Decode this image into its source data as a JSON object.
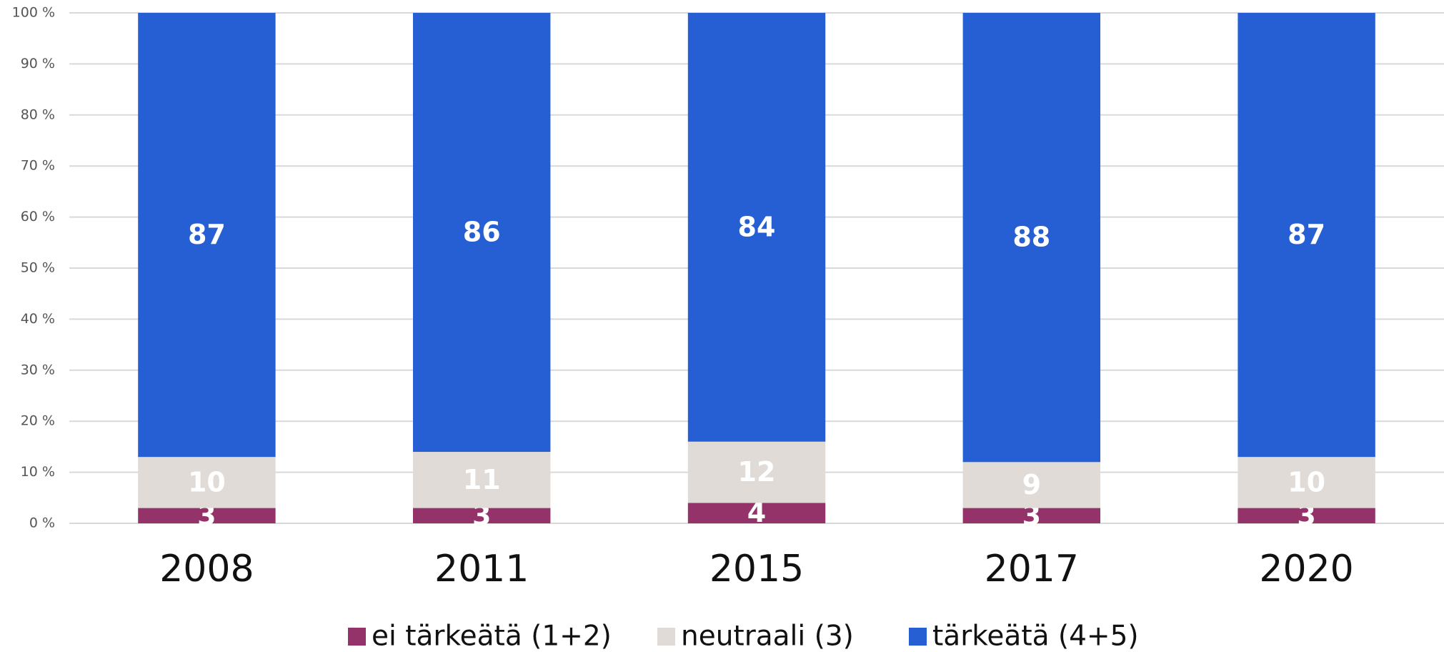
{
  "chart_data": {
    "type": "stacked_bar",
    "categories": [
      "2008",
      "2011",
      "2015",
      "2017",
      "2020"
    ],
    "series": [
      {
        "name": "ei tärkeätä (1+2)",
        "color": "#93336a",
        "values": [
          3,
          3,
          4,
          3,
          3
        ]
      },
      {
        "name": "neutraali (3)",
        "color": "#e0dbd7",
        "values": [
          10,
          11,
          12,
          9,
          10
        ]
      },
      {
        "name": "tärkeätä (4+5)",
        "color": "#265fd3",
        "values": [
          87,
          86,
          84,
          88,
          87
        ]
      }
    ],
    "ylim": [
      0,
      100
    ],
    "yticks": [
      {
        "value": 0,
        "label": "0 %"
      },
      {
        "value": 10,
        "label": "10 %"
      },
      {
        "value": 20,
        "label": "20 %"
      },
      {
        "value": 30,
        "label": "30 %"
      },
      {
        "value": 40,
        "label": "40 %"
      },
      {
        "value": 50,
        "label": "50 %"
      },
      {
        "value": 60,
        "label": "60 %"
      },
      {
        "value": 70,
        "label": "70 %"
      },
      {
        "value": 80,
        "label": "80 %"
      },
      {
        "value": 90,
        "label": "90 %"
      },
      {
        "value": 100,
        "label": "100 %"
      }
    ],
    "grid": true,
    "legend": "bottom"
  }
}
